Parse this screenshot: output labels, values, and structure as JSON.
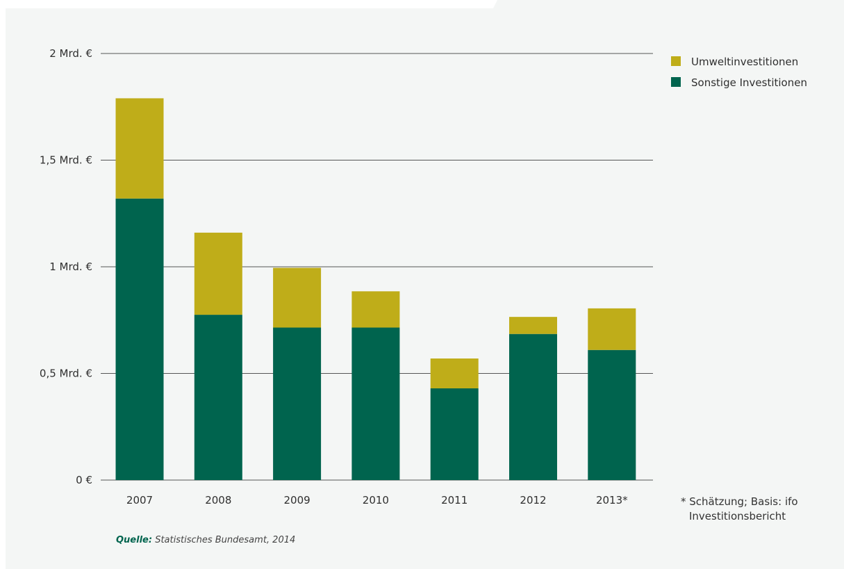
{
  "chart_data": {
    "type": "bar",
    "stacked": true,
    "categories": [
      "2007",
      "2008",
      "2009",
      "2010",
      "2011",
      "2012",
      "2013*"
    ],
    "series": [
      {
        "name": "Sonstige Investitionen",
        "color": "#00644e",
        "values": [
          1.32,
          0.775,
          0.715,
          0.715,
          0.43,
          0.685,
          0.61
        ]
      },
      {
        "name": "Umweltinvestitionen",
        "color": "#bfad19",
        "values": [
          0.47,
          0.385,
          0.28,
          0.17,
          0.14,
          0.08,
          0.195
        ]
      }
    ],
    "ylim": [
      0,
      2
    ],
    "yticks": [
      {
        "value": 0,
        "label": "0 €"
      },
      {
        "value": 0.5,
        "label": "0,5 Mrd. €"
      },
      {
        "value": 1,
        "label": "1 Mrd. €"
      },
      {
        "value": 1.5,
        "label": "1,5 Mrd. €"
      },
      {
        "value": 2,
        "label": "2 Mrd. €"
      }
    ],
    "grid": true,
    "legend_position": "top-right",
    "legend": [
      {
        "name": "Umweltinvestitionen",
        "color": "#bfad19"
      },
      {
        "name": "Sonstige Investitionen",
        "color": "#00644e"
      }
    ]
  },
  "footnote": {
    "line1": "* Schätzung; Basis: ifo",
    "line2": "Investitionsbericht"
  },
  "source": {
    "label": "Quelle:",
    "text": " Statistisches Bundesamt, 2014"
  }
}
